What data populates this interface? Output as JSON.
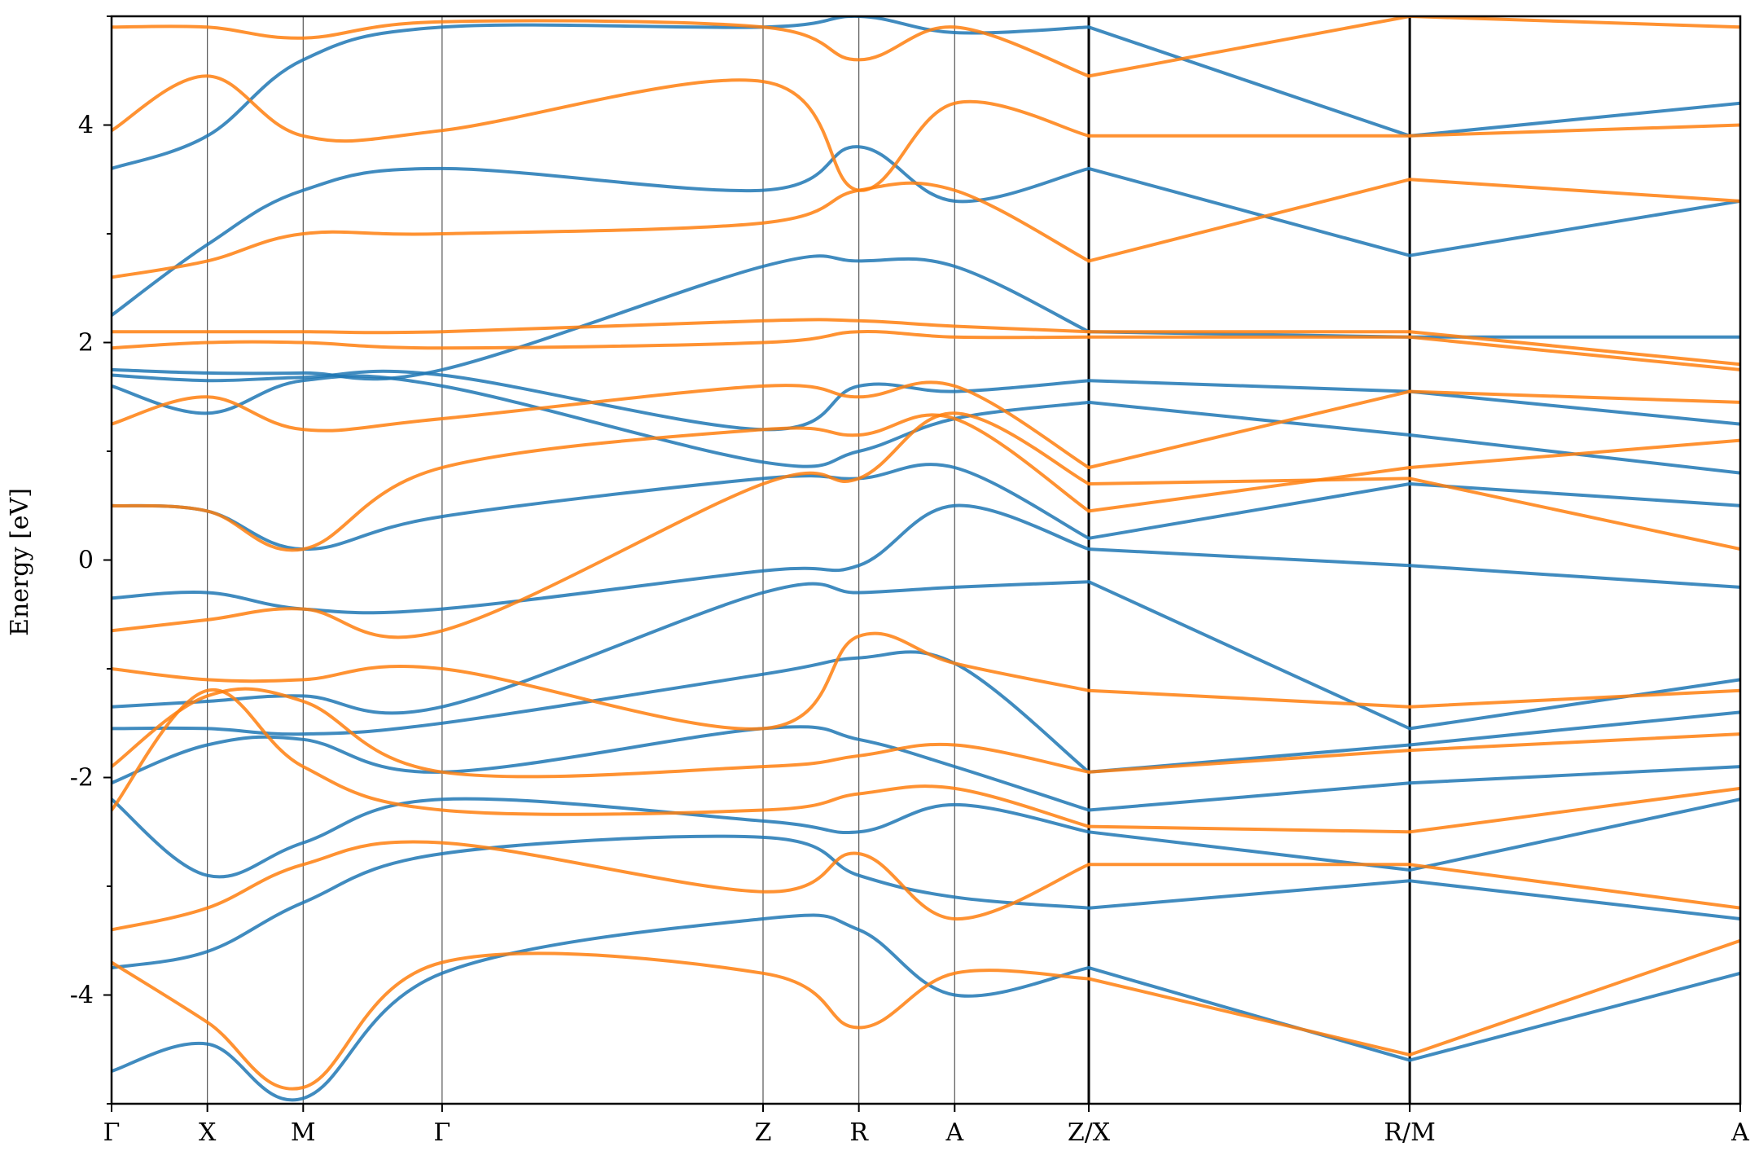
{
  "chart_data": {
    "type": "line",
    "title": "",
    "xlabel": "",
    "ylabel": "Energy [eV]",
    "ylim": [
      -5,
      5
    ],
    "grid": false,
    "legend": "none",
    "y_ticks": [
      -4,
      -2,
      0,
      2,
      4
    ],
    "y_tick_labels": [
      "-4",
      "-2",
      "0",
      "2",
      "4"
    ],
    "x_tick_labels": [
      "Γ",
      "X",
      "M",
      "Γ",
      "Z",
      "R",
      "A",
      "Z/X",
      "R/M",
      "A"
    ],
    "x_range": [
      0,
      17
    ],
    "high_symmetry_points": [
      0,
      1,
      2,
      3.45,
      6.8,
      7.8,
      8.8,
      10.2,
      13.55,
      17
    ],
    "path_breaks": [
      10.2,
      13.55
    ],
    "colors": {
      "up": "#1f77b4",
      "down": "#ff7f0e",
      "axis": "#000000",
      "vline": "#555555"
    },
    "series": [
      {
        "color": "#1f77b4",
        "bands": [
          {
            "x": [
              0,
              1,
              2,
              3.45,
              6.8,
              7.8,
              8.8,
              10.2,
              13.55,
              17
            ],
            "y": [
              -4.7,
              -4.45,
              -4.95,
              -3.8,
              -3.3,
              -3.4,
              -4.0,
              -3.75,
              -4.6,
              -3.8
            ]
          },
          {
            "x": [
              0,
              1,
              2,
              3.45,
              6.8,
              7.8,
              8.8,
              10.2,
              13.55,
              17
            ],
            "y": [
              -3.75,
              -3.6,
              -3.15,
              -2.7,
              -2.55,
              -2.9,
              -3.1,
              -3.2,
              -2.95,
              -3.3
            ]
          },
          {
            "x": [
              0,
              1,
              2,
              3.45,
              6.8,
              7.8,
              8.8,
              10.2,
              13.55,
              17
            ],
            "y": [
              -2.2,
              -2.9,
              -2.6,
              -2.2,
              -2.4,
              -2.5,
              -2.25,
              -2.5,
              -2.85,
              -2.2
            ]
          },
          {
            "x": [
              0,
              1,
              2,
              3.45,
              6.8,
              7.8,
              8.8,
              10.2,
              13.55,
              17
            ],
            "y": [
              -2.05,
              -1.7,
              -1.65,
              -1.95,
              -1.55,
              -1.65,
              -1.9,
              -2.3,
              -2.05,
              -1.9
            ]
          },
          {
            "x": [
              0,
              1,
              2,
              3.45,
              6.8,
              7.8,
              8.8,
              10.2,
              13.55,
              17
            ],
            "y": [
              -1.55,
              -1.55,
              -1.6,
              -1.5,
              -1.05,
              -0.9,
              -0.95,
              -1.95,
              -1.7,
              -1.4
            ]
          },
          {
            "x": [
              0,
              1,
              2,
              3.45,
              6.8,
              7.8,
              8.8,
              10.2,
              13.55,
              17
            ],
            "y": [
              -1.35,
              -1.3,
              -1.25,
              -1.35,
              -0.3,
              -0.3,
              -0.25,
              -0.2,
              -1.55,
              -1.1
            ]
          },
          {
            "x": [
              0,
              1,
              2,
              3.45,
              6.8,
              7.8,
              8.8,
              10.2,
              13.55,
              17
            ],
            "y": [
              -0.35,
              -0.3,
              -0.45,
              -0.45,
              -0.1,
              -0.05,
              0.5,
              0.1,
              -0.05,
              -0.25
            ]
          },
          {
            "x": [
              0,
              1,
              2,
              3.45,
              6.8,
              7.8,
              8.8,
              10.2,
              13.55,
              17
            ],
            "y": [
              0.5,
              0.45,
              0.1,
              0.4,
              0.75,
              0.75,
              0.85,
              0.2,
              0.7,
              0.5
            ]
          },
          {
            "x": [
              0,
              1,
              2,
              3.45,
              6.8,
              7.8,
              8.8,
              10.2,
              13.55,
              17
            ],
            "y": [
              1.6,
              1.35,
              1.65,
              1.6,
              0.9,
              1.0,
              1.3,
              1.45,
              1.15,
              0.8
            ]
          },
          {
            "x": [
              0,
              1,
              2,
              3.45,
              6.8,
              7.8,
              8.8,
              10.2,
              13.55,
              17
            ],
            "y": [
              1.7,
              1.65,
              1.68,
              1.7,
              1.2,
              1.6,
              1.55,
              1.65,
              1.55,
              1.25
            ]
          },
          {
            "x": [
              0,
              1,
              2,
              3.45,
              6.8,
              7.8,
              8.8,
              10.2,
              13.55,
              17
            ],
            "y": [
              1.75,
              1.72,
              1.72,
              1.75,
              2.7,
              2.75,
              2.7,
              2.1,
              2.05,
              2.05
            ]
          },
          {
            "x": [
              0,
              1,
              2,
              3.45,
              6.8,
              7.8,
              8.8,
              10.2,
              13.55,
              17
            ],
            "y": [
              2.25,
              2.9,
              3.4,
              3.6,
              3.4,
              3.8,
              3.3,
              3.6,
              2.8,
              3.3
            ]
          },
          {
            "x": [
              0,
              1,
              2,
              3.45,
              6.8,
              7.8,
              8.8,
              10.2,
              13.55,
              17
            ],
            "y": [
              3.6,
              3.9,
              4.6,
              4.9,
              4.9,
              5.0,
              4.85,
              4.9,
              3.9,
              4.2
            ]
          }
        ]
      },
      {
        "color": "#ff7f0e",
        "bands": [
          {
            "x": [
              0,
              1,
              2,
              3.45,
              6.8,
              7.8,
              8.8,
              10.2,
              13.55,
              17
            ],
            "y": [
              -3.7,
              -4.25,
              -4.85,
              -3.7,
              -3.8,
              -4.3,
              -3.8,
              -3.85,
              -4.55,
              -3.5
            ]
          },
          {
            "x": [
              0,
              1,
              2,
              3.45,
              6.8,
              7.8,
              8.8,
              10.2,
              13.55,
              17
            ],
            "y": [
              -3.4,
              -3.2,
              -2.8,
              -2.6,
              -3.05,
              -2.7,
              -3.3,
              -2.8,
              -2.8,
              -3.2
            ]
          },
          {
            "x": [
              0,
              1,
              2,
              3.45,
              6.8,
              7.8,
              8.8,
              10.2,
              13.55,
              17
            ],
            "y": [
              -2.3,
              -1.2,
              -1.9,
              -2.3,
              -2.3,
              -2.15,
              -2.1,
              -2.45,
              -2.5,
              -2.1
            ]
          },
          {
            "x": [
              0,
              1,
              2,
              3.45,
              6.8,
              7.8,
              8.8,
              10.2,
              13.55,
              17
            ],
            "y": [
              -1.9,
              -1.25,
              -1.3,
              -1.95,
              -1.9,
              -1.8,
              -1.7,
              -1.95,
              -1.75,
              -1.6
            ]
          },
          {
            "x": [
              0,
              1,
              2,
              3.45,
              6.8,
              7.8,
              8.8,
              10.2,
              13.55,
              17
            ],
            "y": [
              -1.0,
              -1.1,
              -1.1,
              -1.0,
              -1.55,
              -0.7,
              -0.95,
              -1.2,
              -1.35,
              -1.2
            ]
          },
          {
            "x": [
              0,
              1,
              2,
              3.45,
              6.8,
              7.8,
              8.8,
              10.2,
              13.55,
              17
            ],
            "y": [
              -0.65,
              -0.55,
              -0.45,
              -0.65,
              0.7,
              0.75,
              1.35,
              0.7,
              0.75,
              0.1
            ]
          },
          {
            "x": [
              0,
              1,
              2,
              3.45,
              6.8,
              7.8,
              8.8,
              10.2,
              13.55,
              17
            ],
            "y": [
              0.5,
              0.45,
              0.1,
              0.85,
              1.2,
              1.15,
              1.3,
              0.45,
              0.85,
              1.1
            ]
          },
          {
            "x": [
              0,
              1,
              2,
              3.45,
              6.8,
              7.8,
              8.8,
              10.2,
              13.55,
              17
            ],
            "y": [
              1.25,
              1.5,
              1.2,
              1.3,
              1.6,
              1.5,
              1.6,
              0.85,
              1.55,
              1.45
            ]
          },
          {
            "x": [
              0,
              1,
              2,
              3.45,
              6.8,
              7.8,
              8.8,
              10.2,
              13.55,
              17
            ],
            "y": [
              1.95,
              2.0,
              2.0,
              1.95,
              2.0,
              2.1,
              2.05,
              2.05,
              2.05,
              1.75
            ]
          },
          {
            "x": [
              0,
              1,
              2,
              3.45,
              6.8,
              7.8,
              8.8,
              10.2,
              13.55,
              17
            ],
            "y": [
              2.1,
              2.1,
              2.1,
              2.1,
              2.2,
              2.2,
              2.15,
              2.1,
              2.1,
              1.8
            ]
          },
          {
            "x": [
              0,
              1,
              2,
              3.45,
              6.8,
              7.8,
              8.8,
              10.2,
              13.55,
              17
            ],
            "y": [
              2.6,
              2.75,
              3.0,
              3.0,
              3.1,
              3.4,
              3.4,
              2.75,
              3.5,
              3.3
            ]
          },
          {
            "x": [
              0,
              1,
              2,
              3.45,
              6.8,
              7.8,
              8.8,
              10.2,
              13.55,
              17
            ],
            "y": [
              3.95,
              4.45,
              3.9,
              3.95,
              4.4,
              3.4,
              4.2,
              3.9,
              3.9,
              4.0
            ]
          },
          {
            "x": [
              0,
              1,
              2,
              3.45,
              6.8,
              7.8,
              8.8,
              10.2,
              13.55,
              17
            ],
            "y": [
              4.9,
              4.9,
              4.8,
              4.95,
              4.9,
              4.6,
              4.9,
              4.45,
              5.0,
              4.9
            ]
          }
        ]
      }
    ]
  }
}
